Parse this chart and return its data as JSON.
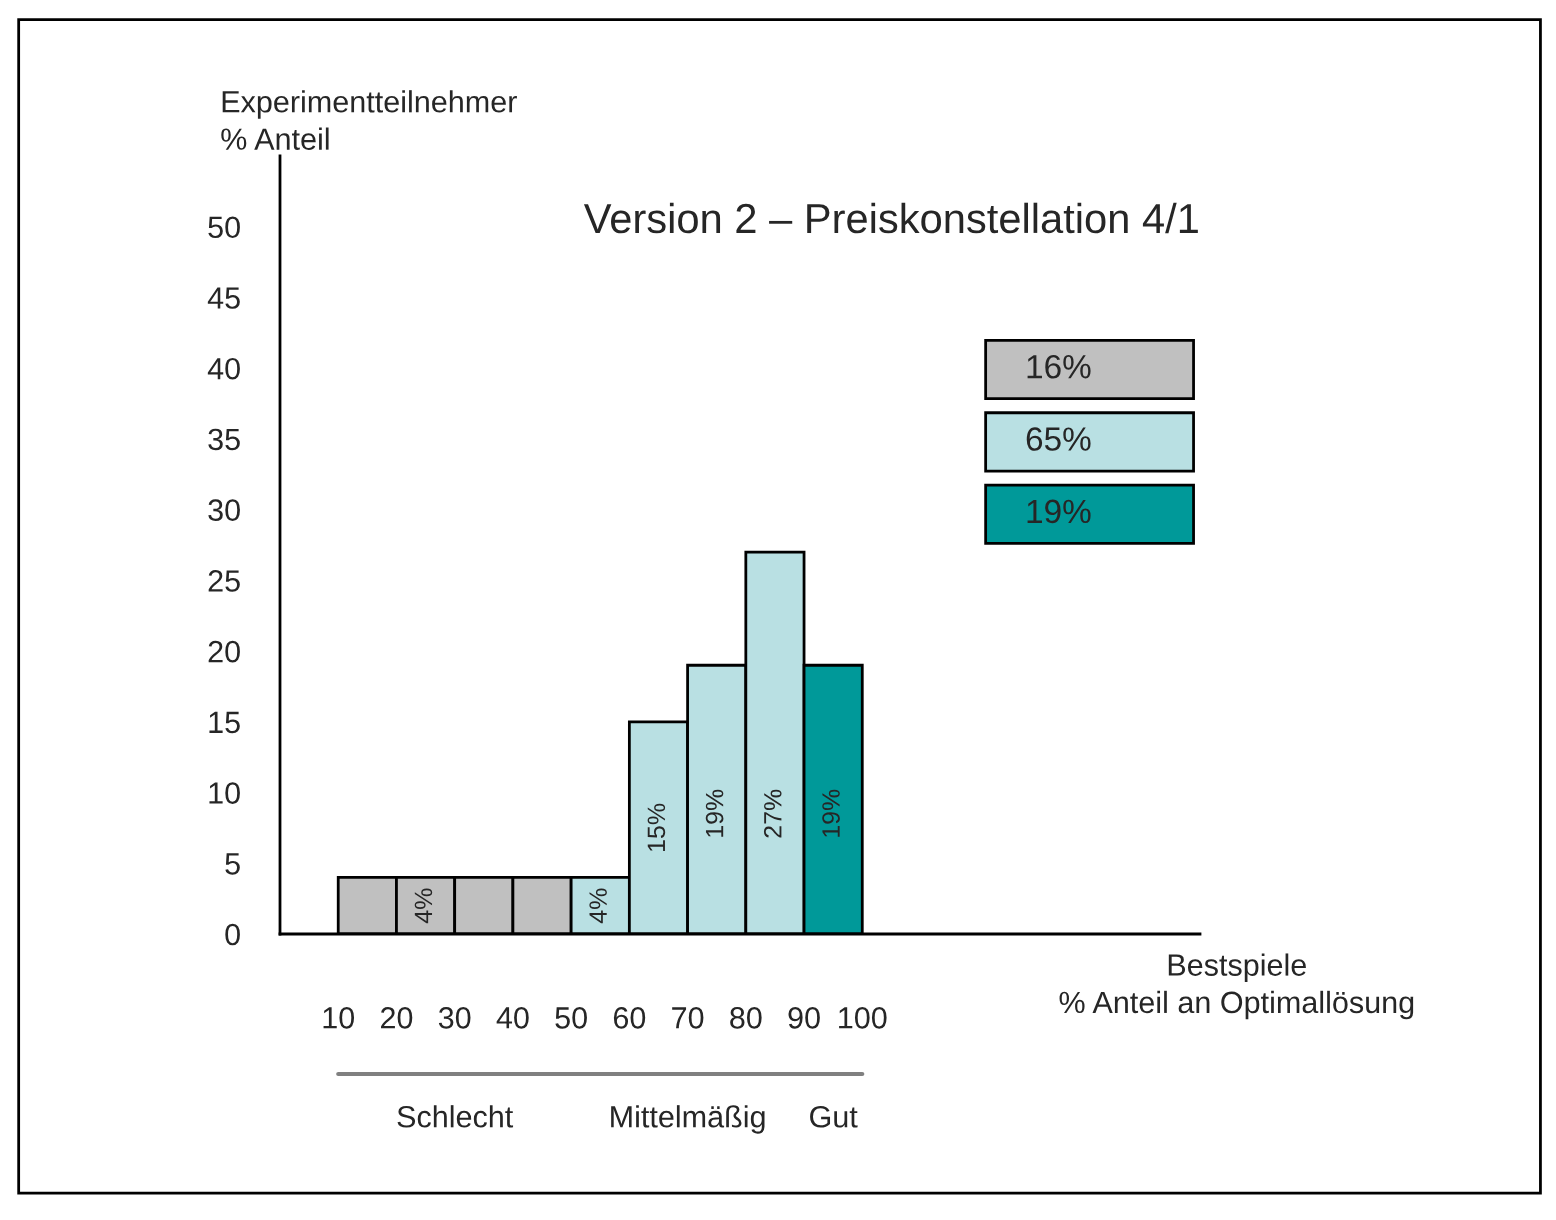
{
  "chart_data": {
    "type": "histogram",
    "title": "Version 2 – Preiskonstellation 4/1",
    "xlabel": "Bestspiele\n% Anteil an Optimallösung",
    "ylabel": "Experimentteilnehmer\n% Anteil",
    "bins": [
      10,
      20,
      30,
      40,
      50,
      60,
      70,
      80,
      90,
      100
    ],
    "series": [
      {
        "name": "16%",
        "color": "#c0c0c0",
        "values": [
          4,
          4,
          4,
          4,
          null,
          null,
          null,
          null,
          null
        ],
        "value_labels": [
          null,
          "4%",
          null,
          null,
          null,
          null,
          null,
          null,
          null
        ]
      },
      {
        "name": "65%",
        "color": "#b9e0e3",
        "values": [
          null,
          null,
          null,
          null,
          4,
          15,
          19,
          27,
          null
        ],
        "value_labels": [
          null,
          null,
          null,
          null,
          "4%",
          "15%",
          "19%",
          "27%",
          null
        ]
      },
      {
        "name": "19%",
        "color": "#009999",
        "values": [
          null,
          null,
          null,
          null,
          null,
          null,
          null,
          null,
          19
        ],
        "value_labels": [
          null,
          null,
          null,
          null,
          null,
          null,
          null,
          null,
          "19%"
        ]
      }
    ],
    "annotations": [
      "Schlecht",
      "Mittelmäßig",
      "Gut"
    ],
    "xlim": [
      0,
      158
    ],
    "xticks": [
      10,
      20,
      30,
      40,
      50,
      60,
      70,
      80,
      90,
      100
    ],
    "ylim": [
      0,
      55
    ],
    "yticks": [
      0,
      5,
      10,
      15,
      20,
      25,
      30,
      35,
      40,
      45,
      50
    ],
    "legend": "top right",
    "grid": false
  }
}
